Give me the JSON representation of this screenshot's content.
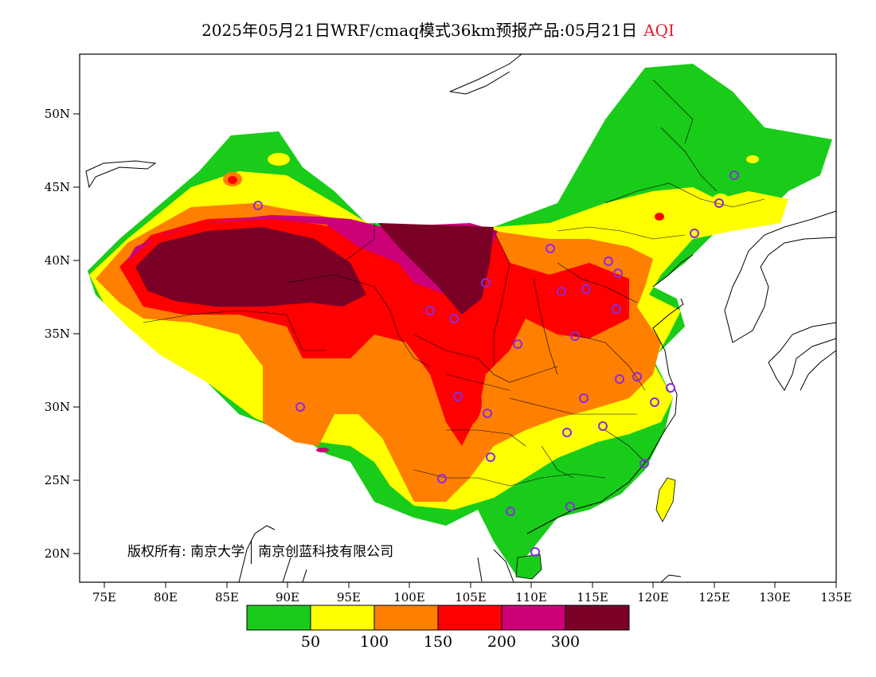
{
  "title": {
    "main": "2025年05月21日WRF/cmaq模式36km预报产品:05月21日",
    "metric": "AQI"
  },
  "axes": {
    "lat_ticks": [
      "50N",
      "45N",
      "40N",
      "35N",
      "30N",
      "25N",
      "20N"
    ],
    "lon_ticks": [
      "75E",
      "80E",
      "85E",
      "90E",
      "95E",
      "100E",
      "105E",
      "110E",
      "115E",
      "120E",
      "125E",
      "130E",
      "135E"
    ]
  },
  "copyright": {
    "prefix": "版权所有:",
    "org1": "南京大学",
    "org2": "南京创蓝科技有限公司"
  },
  "legend": {
    "labels": [
      "50",
      "100",
      "150",
      "200",
      "300"
    ],
    "colors": [
      "#19cc19",
      "#ffff00",
      "#ff7f00",
      "#ff0000",
      "#cc0077",
      "#7a0026"
    ]
  },
  "colors": {
    "ocean": "#ffffff",
    "stations": "#8a2be2"
  }
}
